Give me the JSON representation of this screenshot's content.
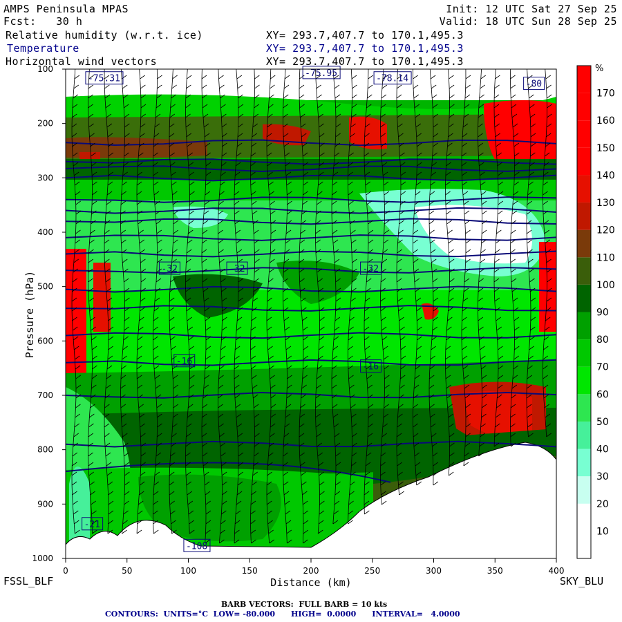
{
  "header": {
    "model": "AMPS Peninsula MPAS",
    "init": "Init: 12 UTC Sat 27 Sep 25",
    "forecast": "Fcst:   30 h",
    "valid": "Valid: 18 UTC Sun 28 Sep 25",
    "field1": "Relative humidity (w.r.t. ice)",
    "field2": "Temperature",
    "field3": "Horizontal wind vectors",
    "xy": "XY= 293.7,407.7 to 170.1,495.3"
  },
  "footer": {
    "left_label": "FSSL_BLF",
    "right_label": "SKY_BLU",
    "barb_note": "BARB VECTORS:  FULL BARB = 10 kts",
    "contour_note": "CONTOURS:  UNITS=°C  LOW= -80.000      HIGH=  0.0000      INTERVAL=   4.0000"
  },
  "colors": {
    "contour": "#0a0a78",
    "barb": "#000000",
    "terrain": "#ffffff"
  },
  "chart_data": {
    "type": "heatmap",
    "title": "",
    "xlabel": "Distance (km)",
    "ylabel": "Pressure (hPa)",
    "xlim": [
      0,
      400
    ],
    "ylim": [
      1000,
      100
    ],
    "x_ticks": [
      0,
      50,
      100,
      150,
      200,
      250,
      300,
      350,
      400
    ],
    "y_ticks": [
      100,
      200,
      300,
      400,
      500,
      600,
      700,
      800,
      900,
      1000
    ],
    "colorbar": {
      "units": "%",
      "ticks": [
        10,
        20,
        30,
        40,
        50,
        60,
        70,
        80,
        90,
        100,
        110,
        120,
        130,
        140,
        150,
        160,
        170
      ],
      "colors": [
        "#ffffff",
        "#ffffff",
        "#c8fff0",
        "#78ffd2",
        "#46f09a",
        "#2ee650",
        "#00e600",
        "#00c800",
        "#00a000",
        "#006400",
        "#3a5e0a",
        "#7a3a0a",
        "#c01800",
        "#e61000",
        "#ff0000",
        "#ff0000",
        "#ff0000",
        "#ff0000"
      ]
    },
    "contour_labels": [
      {
        "text": "-75.31",
        "x": 18,
        "p": 120
      },
      {
        "text": "-75.95",
        "x": 195,
        "p": 110
      },
      {
        "text": "-78.14",
        "x": 253,
        "p": 120
      },
      {
        "text": "-80",
        "x": 375,
        "p": 130
      },
      {
        "text": "-32",
        "x": 78,
        "p": 470
      },
      {
        "text": "-32",
        "x": 133,
        "p": 470
      },
      {
        "text": "-32",
        "x": 242,
        "p": 470
      },
      {
        "text": "-16",
        "x": 90,
        "p": 640
      },
      {
        "text": "-16",
        "x": 242,
        "p": 650
      },
      {
        "text": "-21",
        "x": 15,
        "p": 940
      },
      {
        "text": "-108",
        "x": 98,
        "p": 980
      }
    ],
    "isotherm_pressures": [
      235,
      270,
      283,
      300,
      340,
      360,
      380,
      410,
      440,
      470,
      505,
      540,
      590,
      640,
      700,
      790
    ]
  }
}
